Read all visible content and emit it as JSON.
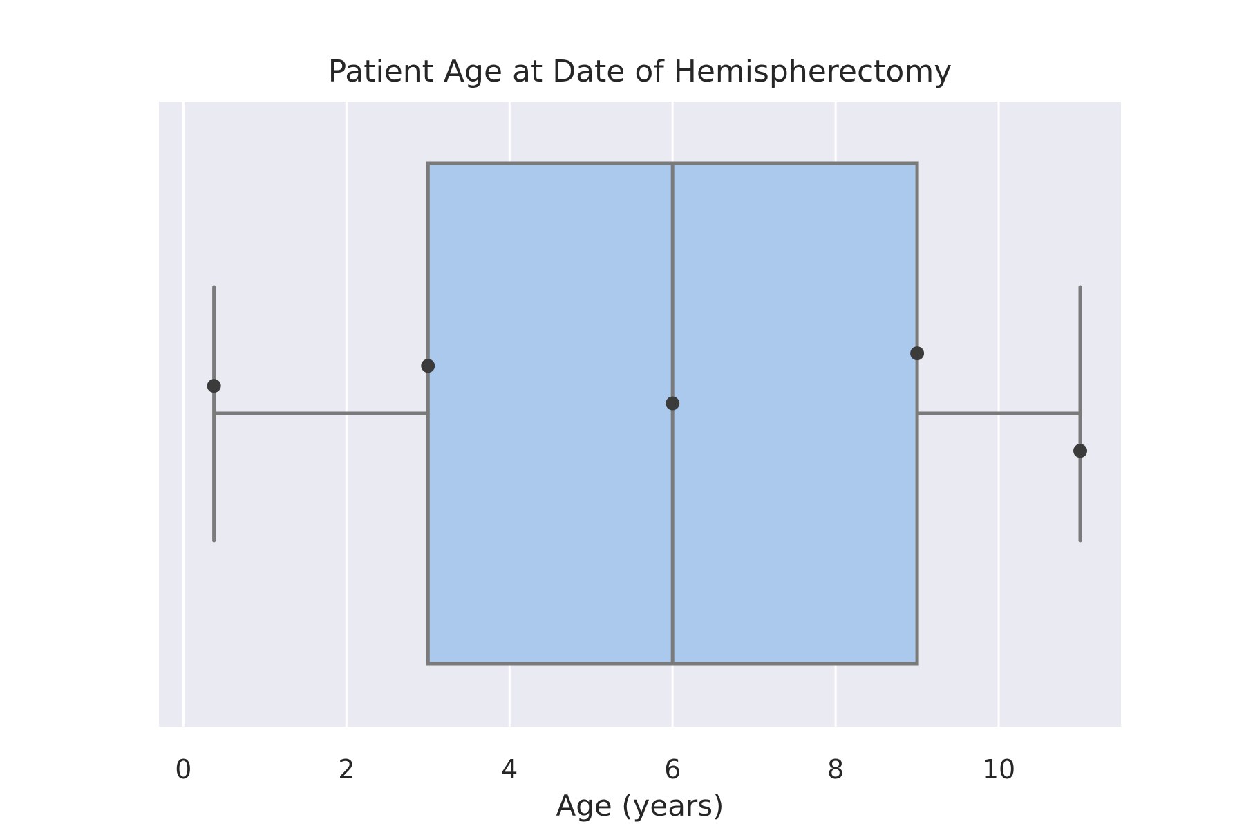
{
  "chart_data": {
    "type": "box",
    "title": "Patient Age at Date of Hemispherectomy",
    "xlabel": "Age (years)",
    "ylabel": "",
    "orientation": "horizontal",
    "xlim": [
      -0.3,
      11.5
    ],
    "x_ticks": [
      0,
      2,
      4,
      6,
      8,
      10
    ],
    "x_tick_labels": [
      "0",
      "2",
      "4",
      "6",
      "8",
      "10"
    ],
    "grid": true,
    "legend": "none",
    "box": {
      "whisker_low": 0.375,
      "q1": 3,
      "median": 6,
      "q3": 9,
      "whisker_high": 11
    },
    "points": [
      {
        "x": 0.375,
        "jitter": 0.11
      },
      {
        "x": 3,
        "jitter": 0.19
      },
      {
        "x": 6,
        "jitter": 0.04
      },
      {
        "x": 9,
        "jitter": 0.24
      },
      {
        "x": 11,
        "jitter": -0.15
      }
    ],
    "colors": {
      "background": "#eaeaf2",
      "grid": "#ffffff",
      "box_fill": "#abc9ec",
      "box_edge": "#7a7a7a",
      "point": "#3b3b3b"
    }
  }
}
